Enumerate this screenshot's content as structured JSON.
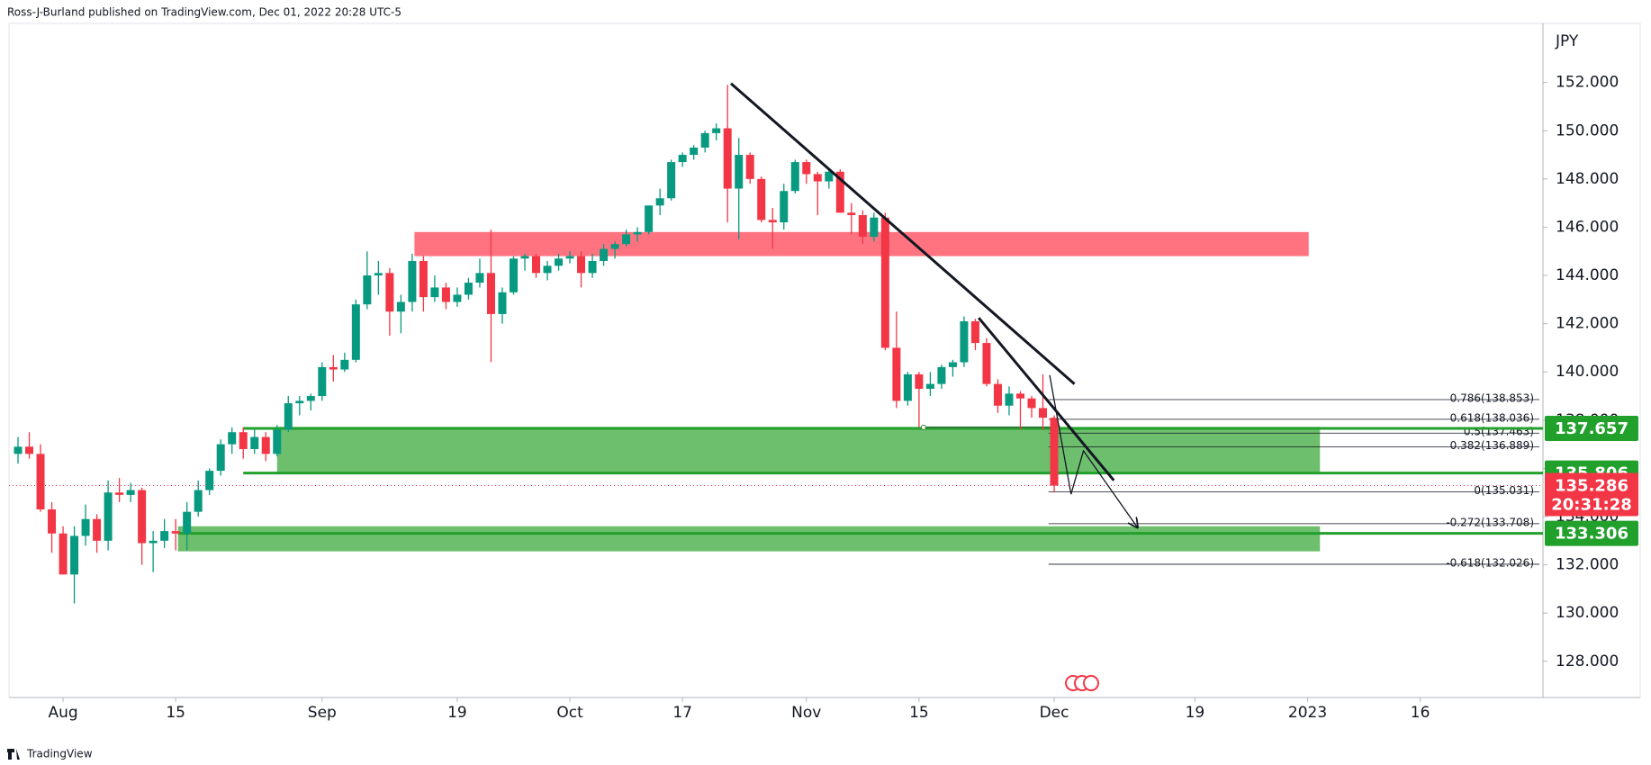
{
  "header": "Ross-J-Burland published on TradingView.com, Dec 01, 2022 20:28 UTC-5",
  "footer": "TradingView",
  "chart_data": {
    "type": "candlestick",
    "currency": "JPY",
    "up_color": "#089981",
    "down_color": "#f23645",
    "xlim": [
      -4.8,
      131.4
    ],
    "ylim": [
      126.5,
      154.45
    ],
    "grid": false,
    "xticks": [
      {
        "value": 0,
        "label": "Aug"
      },
      {
        "value": 10,
        "label": "15"
      },
      {
        "value": 23,
        "label": "Sep"
      },
      {
        "value": 35,
        "label": "19"
      },
      {
        "value": 45,
        "label": "Oct"
      },
      {
        "value": 55,
        "label": "17"
      },
      {
        "value": 66,
        "label": "Nov"
      },
      {
        "value": 76,
        "label": "15"
      },
      {
        "value": 88,
        "label": "Dec"
      },
      {
        "value": 100.5,
        "label": "19"
      },
      {
        "value": 110.5,
        "label": "2023"
      },
      {
        "value": 120.5,
        "label": "16"
      }
    ],
    "yticks": [
      {
        "value": 128,
        "label": "128.000"
      },
      {
        "value": 130,
        "label": "130.000"
      },
      {
        "value": 132,
        "label": "132.000"
      },
      {
        "value": 134,
        "label": "134.000"
      },
      {
        "value": 136,
        "label": "136.000"
      },
      {
        "value": 138,
        "label": "138.000"
      },
      {
        "value": 140,
        "label": "140.000"
      },
      {
        "value": 142,
        "label": "142.000"
      },
      {
        "value": 144,
        "label": "144.000"
      },
      {
        "value": 146,
        "label": "146.000"
      },
      {
        "value": 148,
        "label": "148.000"
      },
      {
        "value": 150,
        "label": "150.000"
      },
      {
        "value": 152,
        "label": "152.000"
      }
    ],
    "candles": [
      {
        "x": -4,
        "open": 136.6,
        "high": 137.3,
        "low": 136.2,
        "close": 136.9
      },
      {
        "x": -3,
        "open": 136.9,
        "high": 137.5,
        "low": 136.4,
        "close": 136.6
      },
      {
        "x": -2,
        "open": 136.6,
        "high": 137.0,
        "low": 134.2,
        "close": 134.3
      },
      {
        "x": -1,
        "open": 134.3,
        "high": 134.6,
        "low": 132.5,
        "close": 133.3
      },
      {
        "x": 0,
        "open": 133.3,
        "high": 133.6,
        "low": 131.6,
        "close": 131.6
      },
      {
        "x": 1,
        "open": 131.6,
        "high": 133.6,
        "low": 130.4,
        "close": 133.2
      },
      {
        "x": 2,
        "open": 133.2,
        "high": 134.5,
        "low": 132.8,
        "close": 133.9
      },
      {
        "x": 3,
        "open": 133.9,
        "high": 134.1,
        "low": 132.5,
        "close": 133.0
      },
      {
        "x": 4,
        "open": 133.0,
        "high": 135.5,
        "low": 132.6,
        "close": 135.0
      },
      {
        "x": 5,
        "open": 135.0,
        "high": 135.6,
        "low": 134.6,
        "close": 134.9
      },
      {
        "x": 6,
        "open": 134.9,
        "high": 135.4,
        "low": 134.6,
        "close": 135.1
      },
      {
        "x": 7,
        "open": 135.1,
        "high": 135.2,
        "low": 132.0,
        "close": 132.9
      },
      {
        "x": 8,
        "open": 132.9,
        "high": 133.4,
        "low": 131.7,
        "close": 133.0
      },
      {
        "x": 9,
        "open": 133.0,
        "high": 133.9,
        "low": 132.7,
        "close": 133.4
      },
      {
        "x": 10,
        "open": 133.4,
        "high": 133.9,
        "low": 132.6,
        "close": 133.3
      },
      {
        "x": 11,
        "open": 133.3,
        "high": 134.6,
        "low": 132.6,
        "close": 134.2
      },
      {
        "x": 12,
        "open": 134.2,
        "high": 135.5,
        "low": 134.0,
        "close": 135.1
      },
      {
        "x": 13,
        "open": 135.1,
        "high": 136.0,
        "low": 134.9,
        "close": 135.9
      },
      {
        "x": 14,
        "open": 135.9,
        "high": 137.2,
        "low": 135.7,
        "close": 137.0
      },
      {
        "x": 15,
        "open": 137.0,
        "high": 137.7,
        "low": 136.6,
        "close": 137.5
      },
      {
        "x": 16,
        "open": 137.5,
        "high": 137.7,
        "low": 136.4,
        "close": 136.8
      },
      {
        "x": 17,
        "open": 136.8,
        "high": 137.6,
        "low": 136.6,
        "close": 137.3
      },
      {
        "x": 18,
        "open": 137.3,
        "high": 137.5,
        "low": 136.3,
        "close": 136.6
      },
      {
        "x": 19,
        "open": 136.6,
        "high": 137.8,
        "low": 136.5,
        "close": 137.6
      },
      {
        "x": 20,
        "open": 137.6,
        "high": 139.0,
        "low": 137.5,
        "close": 138.7
      },
      {
        "x": 21,
        "open": 138.7,
        "high": 139.0,
        "low": 138.2,
        "close": 138.8
      },
      {
        "x": 22,
        "open": 138.8,
        "high": 139.1,
        "low": 138.4,
        "close": 139.0
      },
      {
        "x": 23,
        "open": 139.0,
        "high": 140.4,
        "low": 138.8,
        "close": 140.2
      },
      {
        "x": 24,
        "open": 140.2,
        "high": 140.7,
        "low": 139.6,
        "close": 140.1
      },
      {
        "x": 25,
        "open": 140.1,
        "high": 140.8,
        "low": 140.0,
        "close": 140.5
      },
      {
        "x": 26,
        "open": 140.5,
        "high": 143.0,
        "low": 140.4,
        "close": 142.8
      },
      {
        "x": 27,
        "open": 142.8,
        "high": 145.0,
        "low": 142.6,
        "close": 144.0
      },
      {
        "x": 28,
        "open": 144.0,
        "high": 144.6,
        "low": 143.2,
        "close": 144.1
      },
      {
        "x": 29,
        "open": 144.1,
        "high": 144.3,
        "low": 141.5,
        "close": 142.5
      },
      {
        "x": 30,
        "open": 142.5,
        "high": 143.2,
        "low": 141.6,
        "close": 142.9
      },
      {
        "x": 31,
        "open": 142.9,
        "high": 144.9,
        "low": 142.5,
        "close": 144.6
      },
      {
        "x": 32,
        "open": 144.6,
        "high": 144.8,
        "low": 142.5,
        "close": 143.1
      },
      {
        "x": 33,
        "open": 143.1,
        "high": 144.0,
        "low": 142.9,
        "close": 143.5
      },
      {
        "x": 34,
        "open": 143.5,
        "high": 143.7,
        "low": 142.6,
        "close": 142.9
      },
      {
        "x": 35,
        "open": 142.9,
        "high": 143.5,
        "low": 142.7,
        "close": 143.2
      },
      {
        "x": 36,
        "open": 143.2,
        "high": 143.9,
        "low": 143.0,
        "close": 143.7
      },
      {
        "x": 37,
        "open": 143.7,
        "high": 144.7,
        "low": 143.5,
        "close": 144.1
      },
      {
        "x": 38,
        "open": 144.1,
        "high": 145.9,
        "low": 140.4,
        "close": 142.4
      },
      {
        "x": 39,
        "open": 142.4,
        "high": 143.5,
        "low": 142.0,
        "close": 143.3
      },
      {
        "x": 40,
        "open": 143.3,
        "high": 144.8,
        "low": 143.2,
        "close": 144.7
      },
      {
        "x": 41,
        "open": 144.7,
        "high": 144.9,
        "low": 144.2,
        "close": 144.8
      },
      {
        "x": 42,
        "open": 144.8,
        "high": 144.9,
        "low": 143.9,
        "close": 144.1
      },
      {
        "x": 43,
        "open": 144.1,
        "high": 144.6,
        "low": 143.8,
        "close": 144.4
      },
      {
        "x": 44,
        "open": 144.4,
        "high": 144.9,
        "low": 144.2,
        "close": 144.7
      },
      {
        "x": 45,
        "open": 144.7,
        "high": 145.0,
        "low": 144.5,
        "close": 144.8
      },
      {
        "x": 46,
        "open": 144.8,
        "high": 145.0,
        "low": 143.5,
        "close": 144.1
      },
      {
        "x": 47,
        "open": 144.1,
        "high": 144.9,
        "low": 143.9,
        "close": 144.6
      },
      {
        "x": 48,
        "open": 144.6,
        "high": 145.3,
        "low": 144.4,
        "close": 145.1
      },
      {
        "x": 49,
        "open": 145.1,
        "high": 145.4,
        "low": 144.7,
        "close": 145.3
      },
      {
        "x": 50,
        "open": 145.3,
        "high": 145.9,
        "low": 145.2,
        "close": 145.7
      },
      {
        "x": 51,
        "open": 145.7,
        "high": 146.0,
        "low": 145.4,
        "close": 145.8
      },
      {
        "x": 52,
        "open": 145.8,
        "high": 146.9,
        "low": 145.7,
        "close": 146.9
      },
      {
        "x": 53,
        "open": 146.9,
        "high": 147.6,
        "low": 146.5,
        "close": 147.2
      },
      {
        "x": 54,
        "open": 147.2,
        "high": 148.8,
        "low": 147.1,
        "close": 148.7
      },
      {
        "x": 55,
        "open": 148.7,
        "high": 149.1,
        "low": 148.5,
        "close": 149.0
      },
      {
        "x": 56,
        "open": 149.0,
        "high": 149.4,
        "low": 148.8,
        "close": 149.3
      },
      {
        "x": 57,
        "open": 149.3,
        "high": 150.0,
        "low": 149.1,
        "close": 149.9
      },
      {
        "x": 58,
        "open": 149.9,
        "high": 150.3,
        "low": 149.6,
        "close": 150.1
      },
      {
        "x": 59,
        "open": 150.1,
        "high": 151.9,
        "low": 146.2,
        "close": 147.6
      },
      {
        "x": 60,
        "open": 147.6,
        "high": 149.7,
        "low": 145.5,
        "close": 149.0
      },
      {
        "x": 61,
        "open": 149.0,
        "high": 149.1,
        "low": 147.8,
        "close": 148.0
      },
      {
        "x": 62,
        "open": 148.0,
        "high": 148.1,
        "low": 146.2,
        "close": 146.3
      },
      {
        "x": 63,
        "open": 146.3,
        "high": 146.8,
        "low": 145.1,
        "close": 146.2
      },
      {
        "x": 64,
        "open": 146.2,
        "high": 147.8,
        "low": 145.9,
        "close": 147.5
      },
      {
        "x": 65,
        "open": 147.5,
        "high": 148.8,
        "low": 147.4,
        "close": 148.7
      },
      {
        "x": 66,
        "open": 148.7,
        "high": 148.8,
        "low": 147.8,
        "close": 148.2
      },
      {
        "x": 67,
        "open": 148.2,
        "high": 148.3,
        "low": 146.5,
        "close": 147.9
      },
      {
        "x": 68,
        "open": 147.9,
        "high": 148.4,
        "low": 147.6,
        "close": 148.3
      },
      {
        "x": 69,
        "open": 148.3,
        "high": 148.4,
        "low": 146.6,
        "close": 146.6
      },
      {
        "x": 70,
        "open": 146.6,
        "high": 147.0,
        "low": 145.7,
        "close": 146.5
      },
      {
        "x": 71,
        "open": 146.5,
        "high": 146.7,
        "low": 145.3,
        "close": 145.6
      },
      {
        "x": 72,
        "open": 145.6,
        "high": 146.6,
        "low": 145.4,
        "close": 146.4
      },
      {
        "x": 73,
        "open": 146.4,
        "high": 146.6,
        "low": 140.9,
        "close": 141.0
      },
      {
        "x": 74,
        "open": 141.0,
        "high": 142.5,
        "low": 138.5,
        "close": 138.8
      },
      {
        "x": 75,
        "open": 138.8,
        "high": 140.0,
        "low": 138.6,
        "close": 139.9
      },
      {
        "x": 76,
        "open": 139.9,
        "high": 140.0,
        "low": 137.7,
        "close": 139.3
      },
      {
        "x": 77,
        "open": 139.3,
        "high": 140.0,
        "low": 139.0,
        "close": 139.5
      },
      {
        "x": 78,
        "open": 139.5,
        "high": 140.3,
        "low": 139.3,
        "close": 140.2
      },
      {
        "x": 79,
        "open": 140.2,
        "high": 140.5,
        "low": 139.8,
        "close": 140.4
      },
      {
        "x": 80,
        "open": 140.4,
        "high": 142.3,
        "low": 140.2,
        "close": 142.1
      },
      {
        "x": 81,
        "open": 142.1,
        "high": 142.2,
        "low": 140.9,
        "close": 141.2
      },
      {
        "x": 82,
        "open": 141.2,
        "high": 141.4,
        "low": 139.4,
        "close": 139.5
      },
      {
        "x": 83,
        "open": 139.5,
        "high": 139.7,
        "low": 138.3,
        "close": 138.6
      },
      {
        "x": 84,
        "open": 138.6,
        "high": 139.4,
        "low": 138.2,
        "close": 139.1
      },
      {
        "x": 85,
        "open": 139.1,
        "high": 139.2,
        "low": 137.6,
        "close": 138.9
      },
      {
        "x": 86,
        "open": 138.9,
        "high": 139.0,
        "low": 138.1,
        "close": 138.5
      },
      {
        "x": 87,
        "open": 138.5,
        "high": 139.9,
        "low": 137.6,
        "close": 138.1
      },
      {
        "x": 88,
        "open": 138.1,
        "high": 138.2,
        "low": 135.0,
        "close": 135.286
      }
    ],
    "zones": [
      {
        "xlim": [
          31.2,
          110.6
        ],
        "ylim": [
          144.8,
          145.8
        ],
        "color": "#ff7380"
      },
      {
        "xlim": [
          19,
          111.6
        ],
        "ylim": [
          135.83,
          137.72
        ],
        "color": "#6dbf6d"
      },
      {
        "xlim": [
          10.2,
          111.6
        ],
        "ylim": [
          132.56,
          133.6
        ],
        "color": "#6dbf6d"
      }
    ],
    "trendlines": [
      {
        "x": [
          59.3,
          89.8
        ],
        "y": [
          151.96,
          139.5
        ]
      },
      {
        "x": [
          81.3,
          93.3
        ],
        "y": [
          142.24,
          135.5
        ]
      }
    ],
    "projection": {
      "x": [
        87.6,
        89.5,
        90.6,
        95.4
      ],
      "y": [
        139.87,
        134.93,
        136.73,
        133.55
      ]
    },
    "support_line": {
      "value": 137.7,
      "x": [
        76.4,
        88.3
      ]
    },
    "fib": {
      "x0": 87.5,
      "levels": [
        {
          "value": 138.853,
          "label": "0.786(138.853)"
        },
        {
          "value": 138.036,
          "label": "0.618(138.036)"
        },
        {
          "value": 137.463,
          "label": "0.5(137.463)"
        },
        {
          "value": 136.889,
          "label": "0.382(136.889)"
        },
        {
          "value": 135.031,
          "label": "0(135.031)"
        },
        {
          "value": 133.708,
          "label": "-0.272(133.708)"
        },
        {
          "value": 132.026,
          "label": "-0.618(132.026)"
        }
      ]
    },
    "price_tags": [
      {
        "value": 137.657,
        "color": "#22a02c",
        "from": 16
      },
      {
        "value": 135.806,
        "color": "#22a02c",
        "from": 16
      },
      {
        "value": 135.286,
        "color": "#f23645",
        "countdown": "20:31:28"
      },
      {
        "value": 133.306,
        "color": "#22a02c",
        "from": 10.2
      }
    ]
  }
}
